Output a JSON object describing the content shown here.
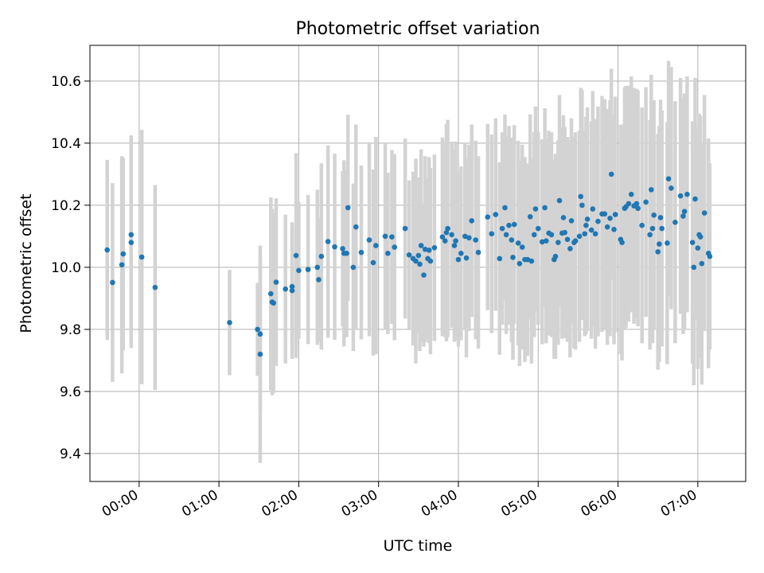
{
  "colors": {
    "point": "#1f77b4",
    "errorbar": "#d3d3d3",
    "grid": "#b0b0b0",
    "axes": "#000000",
    "background": "#ffffff"
  },
  "chart_data": {
    "type": "scatter",
    "title": "Photometric offset variation",
    "xlabel": "UTC time",
    "ylabel": "Photometric offset",
    "grid": true,
    "legend": "none",
    "x_unit": "UTC clock time (HH:MM)",
    "xlim": [
      "23:23",
      "07:36"
    ],
    "ylim": [
      9.31,
      10.715
    ],
    "xticks": [
      "00:00",
      "01:00",
      "02:00",
      "03:00",
      "04:00",
      "05:00",
      "06:00",
      "07:00"
    ],
    "yticks": [
      9.4,
      9.6,
      9.8,
      10.0,
      10.2,
      10.4,
      10.6
    ],
    "ytick_labels": [
      "9.4",
      "9.6",
      "9.8",
      "10.0",
      "10.2",
      "10.4",
      "10.6"
    ],
    "series": [
      {
        "errorbar": "symmetric vertical",
        "points": [
          {
            "x": "23:36",
            "y": 10.056,
            "err": 0.29
          },
          {
            "x": "23:40",
            "y": 9.951,
            "err": 0.32
          },
          {
            "x": "23:47",
            "y": 10.008,
            "err": 0.35
          },
          {
            "x": "23:48",
            "y": 10.043,
            "err": 0.31
          },
          {
            "x": "23:54",
            "y": 10.105,
            "err": 0.32
          },
          {
            "x": "23:54",
            "y": 10.08,
            "err": 0.34
          },
          {
            "x": "00:02",
            "y": 10.033,
            "err": 0.41
          },
          {
            "x": "00:12",
            "y": 9.935,
            "err": 0.33
          },
          {
            "x": "01:08",
            "y": 9.822,
            "err": 0.17
          },
          {
            "x": "01:29",
            "y": 9.8,
            "err": 0.15
          },
          {
            "x": "01:31",
            "y": 9.72,
            "err": 0.35
          },
          {
            "x": "01:31",
            "y": 9.785,
            "err": 0.25
          },
          {
            "x": "01:39",
            "y": 9.915,
            "err": 0.31
          },
          {
            "x": "01:40",
            "y": 9.888,
            "err": 0.3
          },
          {
            "x": "01:41",
            "y": 9.885,
            "err": 0.29
          },
          {
            "x": "01:43",
            "y": 9.952,
            "err": 0.27
          },
          {
            "x": "01:50",
            "y": 9.93,
            "err": 0.24
          },
          {
            "x": "01:55",
            "y": 9.938,
            "err": 0.19
          },
          {
            "x": "01:55",
            "y": 9.925,
            "err": 0.22
          },
          {
            "x": "01:58",
            "y": 10.038,
            "err": 0.33
          },
          {
            "x": "02:00",
            "y": 9.99,
            "err": 0.22
          },
          {
            "x": "02:07",
            "y": 9.993,
            "err": 0.24
          },
          {
            "x": "02:14",
            "y": 10.0,
            "err": 0.25
          },
          {
            "x": "02:15",
            "y": 9.96,
            "err": 0.2
          },
          {
            "x": "02:17",
            "y": 10.035,
            "err": 0.3
          },
          {
            "x": "02:22",
            "y": 10.083,
            "err": 0.31
          },
          {
            "x": "02:27",
            "y": 10.066,
            "err": 0.3
          },
          {
            "x": "02:33",
            "y": 10.06,
            "err": 0.25
          },
          {
            "x": "02:34",
            "y": 10.045,
            "err": 0.3
          },
          {
            "x": "02:36",
            "y": 10.045,
            "err": 0.27
          },
          {
            "x": "02:37",
            "y": 10.192,
            "err": 0.3
          },
          {
            "x": "02:41",
            "y": 10.0,
            "err": 0.27
          },
          {
            "x": "02:43",
            "y": 10.13,
            "err": 0.33
          },
          {
            "x": "02:47",
            "y": 10.048,
            "err": 0.28
          },
          {
            "x": "02:53",
            "y": 10.088,
            "err": 0.31
          },
          {
            "x": "02:56",
            "y": 10.015,
            "err": 0.3
          },
          {
            "x": "02:58",
            "y": 10.07,
            "err": 0.35
          },
          {
            "x": "03:05",
            "y": 10.1,
            "err": 0.3
          },
          {
            "x": "03:07",
            "y": 10.045,
            "err": 0.26
          },
          {
            "x": "03:10",
            "y": 10.098,
            "err": 0.28
          },
          {
            "x": "03:12",
            "y": 10.065,
            "err": 0.3
          },
          {
            "x": "03:20",
            "y": 10.125,
            "err": 0.29
          },
          {
            "x": "03:23",
            "y": 10.04,
            "err": 0.24
          },
          {
            "x": "03:26",
            "y": 10.028,
            "err": 0.28
          },
          {
            "x": "03:28",
            "y": 10.02,
            "err": 0.33
          },
          {
            "x": "03:30",
            "y": 10.038,
            "err": 0.25
          },
          {
            "x": "03:31",
            "y": 10.01,
            "err": 0.28
          },
          {
            "x": "03:32",
            "y": 10.07,
            "err": 0.31
          },
          {
            "x": "03:34",
            "y": 9.975,
            "err": 0.23
          },
          {
            "x": "03:35",
            "y": 10.058,
            "err": 0.3
          },
          {
            "x": "03:37",
            "y": 10.028,
            "err": 0.26
          },
          {
            "x": "03:38",
            "y": 10.055,
            "err": 0.3
          },
          {
            "x": "03:39",
            "y": 10.02,
            "err": 0.3
          },
          {
            "x": "03:42",
            "y": 10.063,
            "err": 0.3
          },
          {
            "x": "03:48",
            "y": 10.098,
            "err": 0.32
          },
          {
            "x": "03:50",
            "y": 10.085,
            "err": 0.31
          },
          {
            "x": "03:51",
            "y": 10.112,
            "err": 0.35
          },
          {
            "x": "03:52",
            "y": 10.125,
            "err": 0.35
          },
          {
            "x": "03:55",
            "y": 10.105,
            "err": 0.3
          },
          {
            "x": "03:57",
            "y": 10.07,
            "err": 0.31
          },
          {
            "x": "03:58",
            "y": 10.085,
            "err": 0.32
          },
          {
            "x": "04:00",
            "y": 10.025,
            "err": 0.28
          },
          {
            "x": "04:02",
            "y": 10.045,
            "err": 0.28
          },
          {
            "x": "04:05",
            "y": 10.1,
            "err": 0.3
          },
          {
            "x": "04:06",
            "y": 10.03,
            "err": 0.32
          },
          {
            "x": "04:08",
            "y": 10.095,
            "err": 0.3
          },
          {
            "x": "04:10",
            "y": 10.15,
            "err": 0.31
          },
          {
            "x": "04:13",
            "y": 10.088,
            "err": 0.32
          },
          {
            "x": "04:15",
            "y": 10.048,
            "err": 0.31
          },
          {
            "x": "04:22",
            "y": 10.162,
            "err": 0.3
          },
          {
            "x": "04:25",
            "y": 10.108,
            "err": 0.32
          },
          {
            "x": "04:28",
            "y": 10.17,
            "err": 0.31
          },
          {
            "x": "04:31",
            "y": 10.028,
            "err": 0.31
          },
          {
            "x": "04:33",
            "y": 10.125,
            "err": 0.31
          },
          {
            "x": "04:35",
            "y": 10.192,
            "err": 0.3
          },
          {
            "x": "04:36",
            "y": 10.105,
            "err": 0.32
          },
          {
            "x": "04:38",
            "y": 10.135,
            "err": 0.32
          },
          {
            "x": "04:40",
            "y": 10.088,
            "err": 0.33
          },
          {
            "x": "04:41",
            "y": 10.032,
            "err": 0.33
          },
          {
            "x": "04:42",
            "y": 10.138,
            "err": 0.32
          },
          {
            "x": "04:45",
            "y": 10.078,
            "err": 0.33
          },
          {
            "x": "04:46",
            "y": 10.012,
            "err": 0.33
          },
          {
            "x": "04:48",
            "y": 10.065,
            "err": 0.33
          },
          {
            "x": "04:50",
            "y": 10.025,
            "err": 0.33
          },
          {
            "x": "04:52",
            "y": 10.025,
            "err": 0.31
          },
          {
            "x": "04:54",
            "y": 10.163,
            "err": 0.33
          },
          {
            "x": "04:55",
            "y": 10.02,
            "err": 0.33
          },
          {
            "x": "04:57",
            "y": 10.105,
            "err": 0.33
          },
          {
            "x": "04:58",
            "y": 10.188,
            "err": 0.33
          },
          {
            "x": "05:00",
            "y": 10.125,
            "err": 0.31
          },
          {
            "x": "05:03",
            "y": 10.082,
            "err": 0.33
          },
          {
            "x": "05:05",
            "y": 10.192,
            "err": 0.32
          },
          {
            "x": "05:06",
            "y": 10.085,
            "err": 0.33
          },
          {
            "x": "05:08",
            "y": 10.11,
            "err": 0.33
          },
          {
            "x": "05:10",
            "y": 10.105,
            "err": 0.33
          },
          {
            "x": "05:12",
            "y": 10.025,
            "err": 0.32
          },
          {
            "x": "05:13",
            "y": 10.035,
            "err": 0.33
          },
          {
            "x": "05:15",
            "y": 10.08,
            "err": 0.33
          },
          {
            "x": "05:16",
            "y": 10.215,
            "err": 0.34
          },
          {
            "x": "05:18",
            "y": 10.11,
            "err": 0.34
          },
          {
            "x": "05:19",
            "y": 10.16,
            "err": 0.33
          },
          {
            "x": "05:20",
            "y": 10.112,
            "err": 0.34
          },
          {
            "x": "05:22",
            "y": 10.09,
            "err": 0.33
          },
          {
            "x": "05:24",
            "y": 10.06,
            "err": 0.35
          },
          {
            "x": "05:25",
            "y": 10.15,
            "err": 0.33
          },
          {
            "x": "05:27",
            "y": 10.08,
            "err": 0.34
          },
          {
            "x": "05:28",
            "y": 10.085,
            "err": 0.35
          },
          {
            "x": "05:31",
            "y": 10.1,
            "err": 0.34
          },
          {
            "x": "05:32",
            "y": 10.228,
            "err": 0.35
          },
          {
            "x": "05:33",
            "y": 10.2,
            "err": 0.37
          },
          {
            "x": "05:35",
            "y": 10.108,
            "err": 0.33
          },
          {
            "x": "05:36",
            "y": 10.135,
            "err": 0.35
          },
          {
            "x": "05:37",
            "y": 10.155,
            "err": 0.36
          },
          {
            "x": "05:40",
            "y": 10.12,
            "err": 0.35
          },
          {
            "x": "05:41",
            "y": 10.188,
            "err": 0.38
          },
          {
            "x": "05:43",
            "y": 10.108,
            "err": 0.37
          },
          {
            "x": "05:45",
            "y": 10.148,
            "err": 0.37
          },
          {
            "x": "05:48",
            "y": 10.172,
            "err": 0.38
          },
          {
            "x": "05:50",
            "y": 10.172,
            "err": 0.37
          },
          {
            "x": "05:52",
            "y": 10.13,
            "err": 0.38
          },
          {
            "x": "05:54",
            "y": 10.158,
            "err": 0.38
          },
          {
            "x": "05:55",
            "y": 10.3,
            "err": 0.34
          },
          {
            "x": "05:57",
            "y": 10.122,
            "err": 0.37
          },
          {
            "x": "05:58",
            "y": 10.17,
            "err": 0.38
          },
          {
            "x": "06:02",
            "y": 10.09,
            "err": 0.37
          },
          {
            "x": "06:03",
            "y": 10.08,
            "err": 0.38
          },
          {
            "x": "06:05",
            "y": 10.19,
            "err": 0.39
          },
          {
            "x": "06:06",
            "y": 10.195,
            "err": 0.39
          },
          {
            "x": "06:08",
            "y": 10.205,
            "err": 0.38
          },
          {
            "x": "06:10",
            "y": 10.235,
            "err": 0.38
          },
          {
            "x": "06:12",
            "y": 10.198,
            "err": 0.38
          },
          {
            "x": "06:14",
            "y": 10.205,
            "err": 0.37
          },
          {
            "x": "06:15",
            "y": 10.19,
            "err": 0.38
          },
          {
            "x": "06:18",
            "y": 10.135,
            "err": 0.38
          },
          {
            "x": "06:21",
            "y": 10.21,
            "err": 0.37
          },
          {
            "x": "06:24",
            "y": 10.105,
            "err": 0.37
          },
          {
            "x": "06:25",
            "y": 10.25,
            "err": 0.37
          },
          {
            "x": "06:26",
            "y": 10.125,
            "err": 0.37
          },
          {
            "x": "06:27",
            "y": 10.168,
            "err": 0.37
          },
          {
            "x": "06:30",
            "y": 10.05,
            "err": 0.38
          },
          {
            "x": "06:31",
            "y": 10.075,
            "err": 0.38
          },
          {
            "x": "06:32",
            "y": 10.16,
            "err": 0.38
          },
          {
            "x": "06:33",
            "y": 10.125,
            "err": 0.38
          },
          {
            "x": "06:37",
            "y": 10.078,
            "err": 0.39
          },
          {
            "x": "06:38",
            "y": 10.285,
            "err": 0.38
          },
          {
            "x": "06:40",
            "y": 10.255,
            "err": 0.39
          },
          {
            "x": "06:43",
            "y": 10.145,
            "err": 0.39
          },
          {
            "x": "06:47",
            "y": 10.23,
            "err": 0.38
          },
          {
            "x": "06:49",
            "y": 10.165,
            "err": 0.38
          },
          {
            "x": "06:50",
            "y": 10.18,
            "err": 0.38
          },
          {
            "x": "06:52",
            "y": 10.235,
            "err": 0.38
          },
          {
            "x": "06:56",
            "y": 10.08,
            "err": 0.39
          },
          {
            "x": "06:57",
            "y": 10.0,
            "err": 0.38
          },
          {
            "x": "06:58",
            "y": 10.22,
            "err": 0.39
          },
          {
            "x": "07:00",
            "y": 10.062,
            "err": 0.39
          },
          {
            "x": "07:01",
            "y": 10.105,
            "err": 0.39
          },
          {
            "x": "07:02",
            "y": 10.098,
            "err": 0.39
          },
          {
            "x": "07:03",
            "y": 10.012,
            "err": 0.39
          },
          {
            "x": "07:05",
            "y": 10.175,
            "err": 0.38
          },
          {
            "x": "07:08",
            "y": 10.045,
            "err": 0.37
          },
          {
            "x": "07:09",
            "y": 10.035,
            "err": 0.3
          }
        ]
      }
    ]
  }
}
